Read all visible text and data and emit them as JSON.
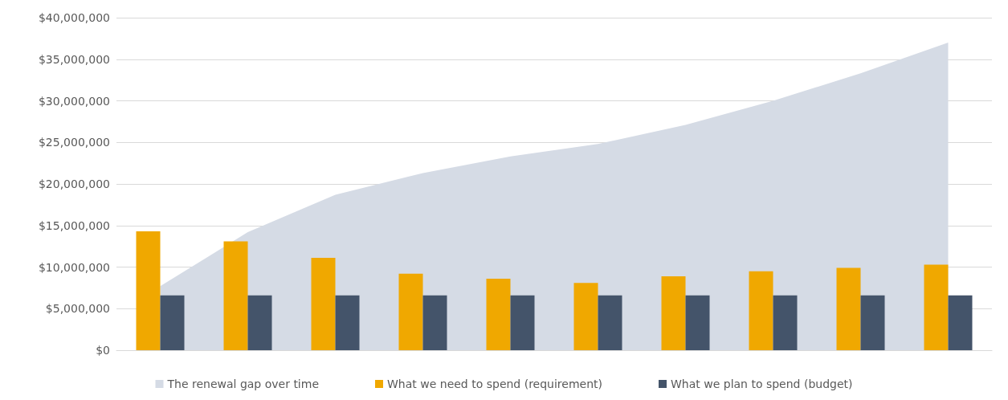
{
  "chart_data": {
    "type": "bar",
    "categories": [
      null,
      null,
      null,
      null,
      null,
      null,
      null,
      null,
      null,
      null
    ],
    "series": [
      {
        "name": "The renewal gap over time",
        "type": "area",
        "color": "#d5dbe5",
        "values": [
          7700000,
          14200000,
          18700000,
          21300000,
          23300000,
          24800000,
          27100000,
          30000000,
          33300000,
          37000000
        ]
      },
      {
        "name": "What we need to spend (requirement)",
        "color": "#f0a800",
        "values": [
          14300000,
          13100000,
          11100000,
          9200000,
          8600000,
          8100000,
          8900000,
          9500000,
          9900000,
          10300000
        ]
      },
      {
        "name": "What we plan to spend (budget)",
        "color": "#44546a",
        "values": [
          6600000,
          6600000,
          6600000,
          6600000,
          6600000,
          6600000,
          6600000,
          6600000,
          6600000,
          6600000
        ]
      }
    ],
    "ylim": [
      0,
      40000000
    ],
    "yticks": [
      {
        "value": 0,
        "label": "$0"
      },
      {
        "value": 5000000,
        "label": "$5,000,000"
      },
      {
        "value": 10000000,
        "label": "$10,000,000"
      },
      {
        "value": 15000000,
        "label": "$15,000,000"
      },
      {
        "value": 20000000,
        "label": "$20,000,000"
      },
      {
        "value": 25000000,
        "label": "$25,000,000"
      },
      {
        "value": 30000000,
        "label": "$30,000,000"
      },
      {
        "value": 35000000,
        "label": "$35,000,000"
      },
      {
        "value": 40000000,
        "label": "$40,000,000"
      }
    ],
    "grid": "y",
    "legend": "bottom"
  }
}
